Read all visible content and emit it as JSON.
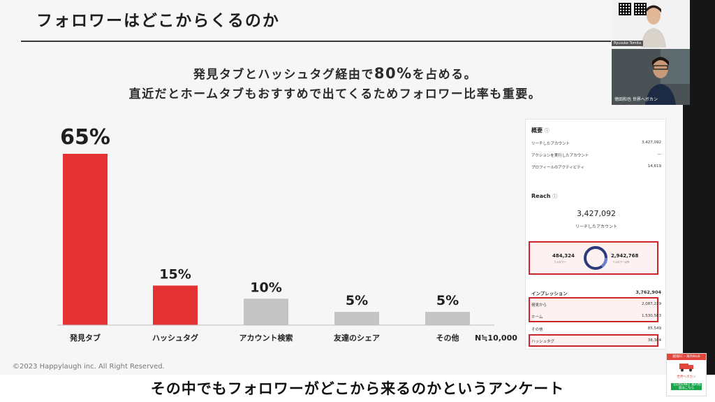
{
  "slide": {
    "title": "フォロワーはどこからくるのか",
    "headline_1_pre": "発見タブとハッシュタグ経由で",
    "headline_1_num": "80%",
    "headline_1_post": "を占める。",
    "headline_2": "直近だとホームタブもおすすめで出てくるためフォロワー比率も重要。",
    "sample_note": "N≒10,000",
    "copyright": "©2023 Happylaugh inc. All Right Reserved."
  },
  "chart_data": {
    "type": "bar",
    "categories": [
      "発見タブ",
      "ハッシュタグ",
      "アカウント検索",
      "友達のシェア",
      "その他"
    ],
    "values": [
      65,
      15,
      10,
      5,
      5
    ],
    "value_labels": [
      "65%",
      "15%",
      "10%",
      "5%",
      "5%"
    ],
    "colors": [
      "#e43232",
      "#e43232",
      "#c4c4c4",
      "#c4c4c4",
      "#c4c4c4"
    ],
    "ylim": [
      0,
      65
    ],
    "grid": false
  },
  "panel": {
    "overview_title": "概要",
    "overview_rows": [
      {
        "label": "リーチしたアカウント",
        "value": "3,427,092"
      },
      {
        "label": "アクションを実行したアカウント",
        "value": "—"
      },
      {
        "label": "プロフィールのアクティビティ",
        "value": "14,619"
      }
    ],
    "reach_title": "Reach",
    "reach_total": "3,427,092",
    "reach_sub": "リーチしたアカウント",
    "ring_left": "484,324",
    "ring_left_label": "フォロワー",
    "ring_right": "2,942,768",
    "ring_right_label": "フォロワー以外",
    "impressions_label": "インプレッション",
    "impressions_value": "3,762,904",
    "impression_rows": [
      {
        "label": "発見から",
        "value": "2,087,229"
      },
      {
        "label": "ホーム",
        "value": "1,530,583"
      },
      {
        "label": "その他",
        "value": "85,549"
      },
      {
        "label": "ハッシュタグ",
        "value": "38,384"
      }
    ]
  },
  "webcam": {
    "presenter_tag": "Ryusuke Tomita",
    "caption": "徳田和也 世界へボカン"
  },
  "subtitle": "その中でもフォロワーがどこから来るのかというアンケート",
  "promo": {
    "label_top": "越境EC・海外BtoB",
    "label_brand": "世界へボカン",
    "label_bottom": "【公式LINE】無料相談はこちら"
  }
}
